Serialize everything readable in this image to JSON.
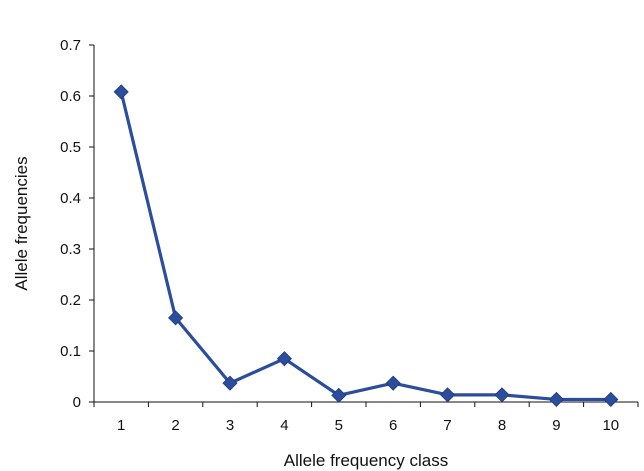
{
  "chart_data": {
    "type": "line",
    "title": "",
    "xlabel": "Allele frequency class",
    "ylabel": "Allele frequencies",
    "x": [
      "1",
      "2",
      "3",
      "4",
      "5",
      "6",
      "7",
      "8",
      "9",
      "10"
    ],
    "y_ticks": [
      "0",
      "0.1",
      "0.2",
      "0.3",
      "0.4",
      "0.5",
      "0.6",
      "0.7"
    ],
    "ylim": [
      0,
      0.7
    ],
    "grid": false,
    "legend": "none",
    "series": [
      {
        "values": [
          0.608,
          0.165,
          0.037,
          0.085,
          0.013,
          0.037,
          0.014,
          0.014,
          0.005,
          0.005
        ],
        "color": "#2b4d9c",
        "marker": "diamond"
      }
    ]
  }
}
